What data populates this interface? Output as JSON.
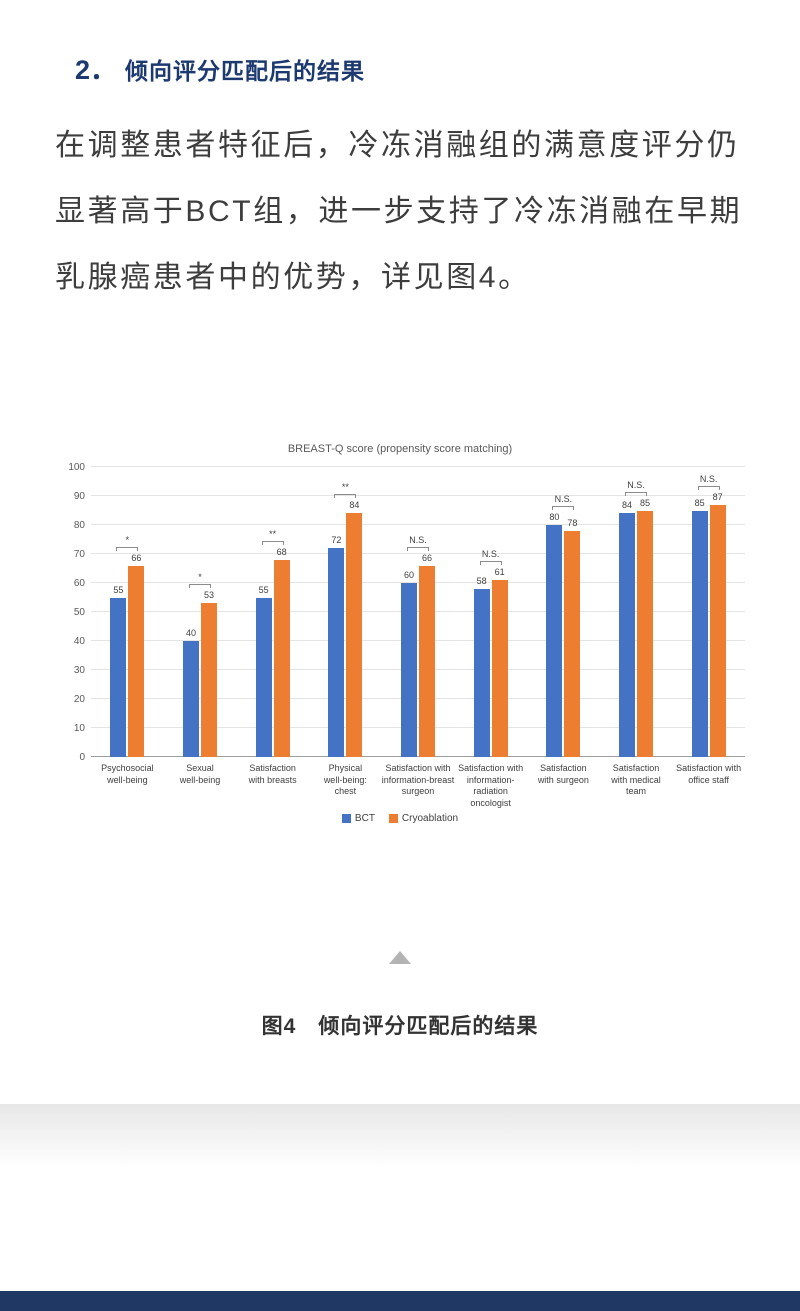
{
  "section": {
    "number": "2．",
    "title": "倾向评分匹配后的结果",
    "body": "在调整患者特征后，冷冻消融组的满意度评分仍\n显著高于BCT组，进一步支持了冷冻消融在早期\n乳腺癌患者中的优势，详见图4。"
  },
  "figure": {
    "caption": "图4　倾向评分匹配后的结果",
    "collapse_icon": "triangle-up-icon"
  },
  "chart_data": {
    "type": "bar",
    "title": "BREAST-Q score (propensity score matching)",
    "categories": [
      "Psychosocial\nwell-being",
      "Sexual\nwell-being",
      "Satisfaction\nwith breasts",
      "Physical\nwell-being:\nchest",
      "Satisfaction with\ninformation-breast\nsurgeon",
      "Satisfaction with\ninformation-\nradiation\noncologist",
      "Satisfaction\nwith surgeon",
      "Satisfaction\nwith medical\nteam",
      "Satisfaction with\noffice staff"
    ],
    "series": [
      {
        "name": "BCT",
        "color": "#4472C4",
        "values": [
          55,
          40,
          55,
          72,
          60,
          58,
          80,
          84,
          85
        ]
      },
      {
        "name": "Cryoablation",
        "color": "#ED7D31",
        "values": [
          66,
          53,
          68,
          84,
          66,
          61,
          78,
          85,
          87
        ]
      }
    ],
    "significance": [
      "*",
      "*",
      "**",
      "**",
      "N.S.",
      "N.S.",
      "N.S.",
      "N.S.",
      "N.S."
    ],
    "ylim": [
      0,
      100
    ],
    "ytick_step": 10,
    "grid": true,
    "legend_position": "bottom"
  },
  "colors": {
    "heading_navy": "#1d3a70",
    "footer_navy": "#1f3864",
    "bct_blue": "#4472C4",
    "cryo_orange": "#ED7D31"
  }
}
